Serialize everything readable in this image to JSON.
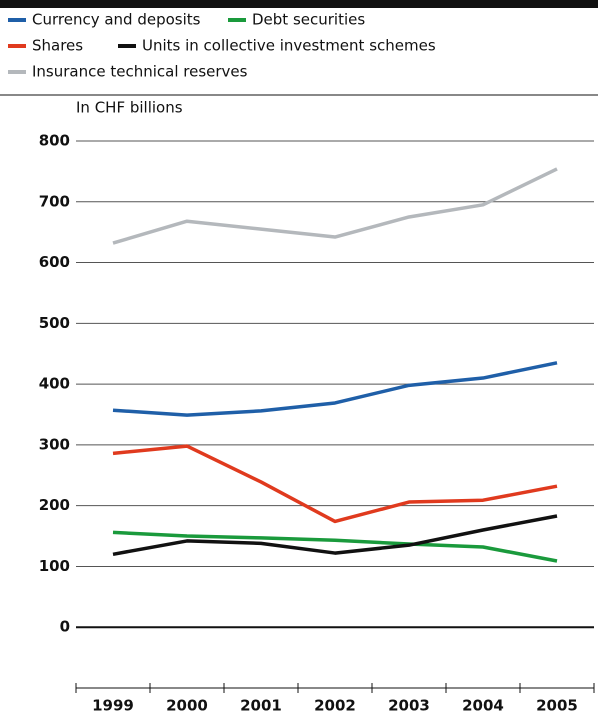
{
  "chart_data": {
    "type": "line",
    "subtitle": "In CHF billions",
    "categories": [
      "1999",
      "2000",
      "2001",
      "2002",
      "2003",
      "2004",
      "2005"
    ],
    "series": [
      {
        "name": "Currency and deposits",
        "color": "#1f5fa8",
        "values": [
          357,
          349,
          356,
          369,
          398,
          410,
          435
        ]
      },
      {
        "name": "Debt securities",
        "color": "#1a9a3c",
        "values": [
          156,
          150,
          147,
          143,
          137,
          132,
          109
        ]
      },
      {
        "name": "Shares",
        "color": "#e03a1e",
        "values": [
          286,
          298,
          239,
          174,
          206,
          209,
          232
        ]
      },
      {
        "name": "Units in collective investment schemes",
        "color": "#111111",
        "values": [
          120,
          142,
          138,
          122,
          135,
          160,
          183
        ]
      },
      {
        "name": "Insurance technical reserves",
        "color": "#b4b8bc",
        "values": [
          632,
          668,
          655,
          642,
          675,
          695,
          754
        ]
      }
    ],
    "ylim": [
      -100,
      800
    ],
    "yticks": [
      0,
      100,
      200,
      300,
      400,
      500,
      600,
      700,
      800
    ],
    "grid": true
  }
}
